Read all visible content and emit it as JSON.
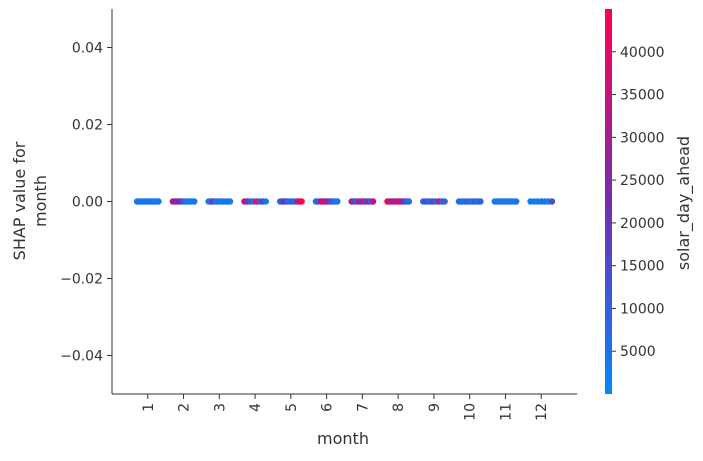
{
  "chart_data": {
    "type": "scatter",
    "title": "",
    "xlabel": "month",
    "ylabel": [
      "SHAP value for",
      "month"
    ],
    "x_ticks": [
      "1",
      "2",
      "3",
      "4",
      "5",
      "6",
      "7",
      "8",
      "9",
      "10",
      "11",
      "12"
    ],
    "xlim": [
      0,
      13
    ],
    "y_ticks": [
      "0.04",
      "0.02",
      "0.00",
      "−0.02",
      "−0.04"
    ],
    "y_tick_values": [
      0.04,
      0.02,
      0.0,
      -0.02,
      -0.04
    ],
    "ylim": [
      -0.05,
      0.05
    ],
    "grid": false,
    "colorbar": {
      "label": "solar_day_ahead",
      "min": 0,
      "max": 45000,
      "ticks": [
        "40000",
        "35000",
        "30000",
        "25000",
        "20000",
        "15000",
        "10000",
        "5000"
      ],
      "tick_values": [
        40000,
        35000,
        30000,
        25000,
        20000,
        15000,
        10000,
        5000
      ],
      "color_low": "#008AFA",
      "color_high": "#FF0052"
    },
    "points": [
      {
        "month": 1,
        "shap": 0.0,
        "color_values": [
          2000,
          5000,
          8000,
          3000,
          6000,
          4000,
          7000,
          2500,
          9000,
          3500,
          5500,
          4500
        ]
      },
      {
        "month": 2,
        "shap": 0.0,
        "color_values": [
          30000,
          27000,
          25000,
          22000,
          15000,
          9000,
          6000,
          4000,
          3000,
          5000
        ]
      },
      {
        "month": 3,
        "shap": 0.0,
        "color_values": [
          3000,
          5000,
          30000,
          8000,
          4000,
          6000,
          2000,
          7000,
          5500,
          3500,
          4500
        ]
      },
      {
        "month": 4,
        "shap": 0.0,
        "color_values": [
          38000,
          20000,
          12000,
          6000,
          42000,
          9000,
          15000,
          4000
        ]
      },
      {
        "month": 5,
        "shap": 0.0,
        "color_values": [
          5000,
          15000,
          22000,
          9000,
          7000,
          12000,
          4000,
          16000,
          40000,
          44000
        ]
      },
      {
        "month": 6,
        "shap": 0.0,
        "color_values": [
          6000,
          9000,
          30000,
          35000,
          38000,
          22000,
          15000,
          12000,
          8000,
          5000
        ]
      },
      {
        "month": 7,
        "shap": 0.0,
        "color_values": [
          28000,
          18000,
          12000,
          32000,
          20000,
          38000,
          14000,
          24000,
          9000,
          36000
        ]
      },
      {
        "month": 8,
        "shap": 0.0,
        "color_values": [
          42000,
          36000,
          30000,
          25000,
          33000,
          40000,
          28000,
          20000,
          12000,
          8000
        ]
      },
      {
        "month": 9,
        "shap": 0.0,
        "color_values": [
          8000,
          14000,
          9000,
          12000,
          16000,
          6000,
          35000,
          11000,
          9000
        ]
      },
      {
        "month": 10,
        "shap": 0.0,
        "color_values": [
          6000,
          8000,
          5000,
          9000,
          7000,
          4000,
          12000,
          6000,
          10000
        ]
      },
      {
        "month": 11,
        "shap": 0.0,
        "color_values": [
          3000,
          5000,
          4000,
          6000,
          2000,
          7000,
          3500,
          5500,
          4500,
          2500,
          6500
        ]
      },
      {
        "month": 12,
        "shap": 0.0,
        "color_values": [
          2000,
          4000,
          3000,
          5000,
          6000,
          2500,
          15000
        ]
      }
    ]
  }
}
